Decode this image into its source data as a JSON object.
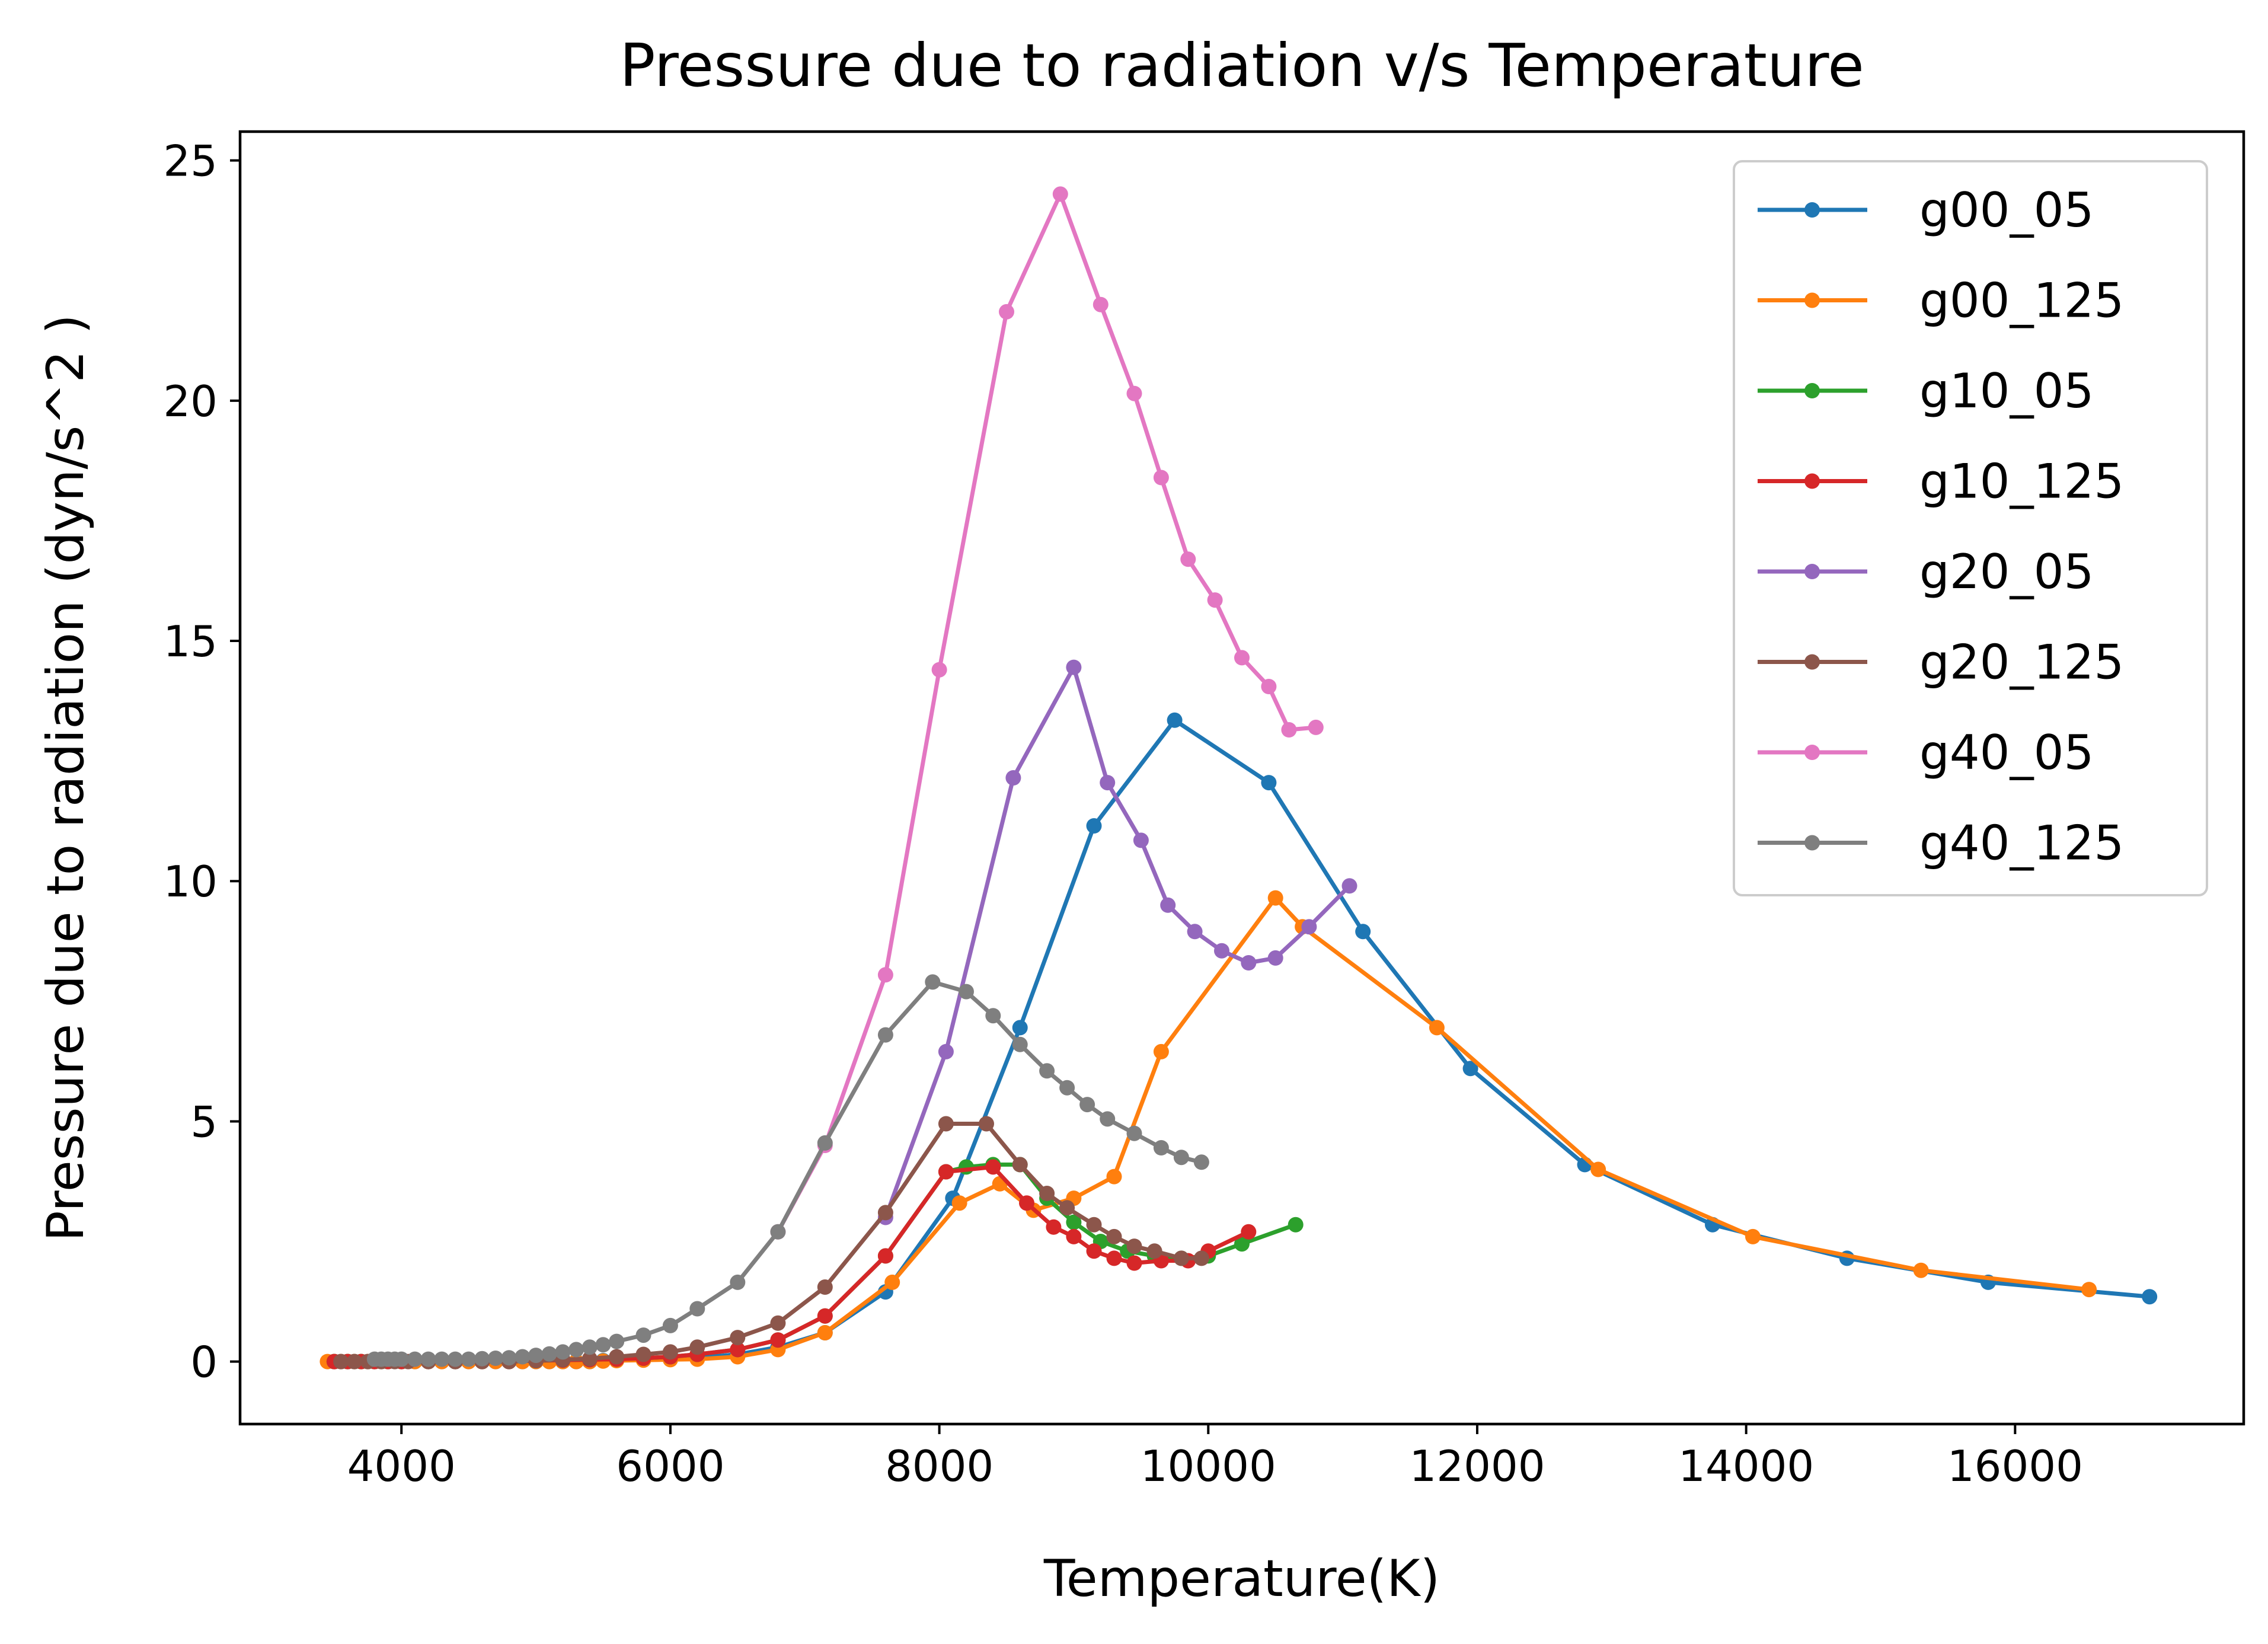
{
  "chart_data": {
    "type": "line",
    "title": "Pressure due to radiation v/s Temperature",
    "xlabel": "Temperature(K)",
    "ylabel": "Pressure due to radiation (dyn/s^2 )",
    "xlim": [
      2800,
      17700
    ],
    "ylim": [
      -1.3,
      25.6
    ],
    "xticks": [
      4000,
      6000,
      8000,
      10000,
      12000,
      14000,
      16000
    ],
    "yticks": [
      0,
      5,
      10,
      15,
      20,
      25
    ],
    "grid": false,
    "legend_position": "top-right",
    "series": [
      {
        "name": "g00_05",
        "color": "#1f77b4",
        "x": [
          3500,
          3550,
          3600,
          3650,
          3700,
          3750,
          3800,
          3850,
          3900,
          4000,
          4100,
          4200,
          4300,
          4400,
          4500,
          4600,
          4700,
          4800,
          4900,
          5000,
          5100,
          5200,
          5300,
          5400,
          5500,
          5600,
          5800,
          6000,
          6200,
          6500,
          6800,
          7150,
          7600,
          8100,
          8600,
          9150,
          9750,
          10450,
          11150,
          11950,
          12800,
          13750,
          14750,
          15800,
          17000
        ],
        "y": [
          0.0,
          0.0,
          0.0,
          0.0,
          0.0,
          0.0,
          0.0,
          0.0,
          0.0,
          0.0,
          0.0,
          0.0,
          0.0,
          0.0,
          0.0,
          0.0,
          0.0,
          0.0,
          0.0,
          0.0,
          0.0,
          0.0,
          0.0,
          0.0,
          0.02,
          0.03,
          0.04,
          0.05,
          0.08,
          0.15,
          0.3,
          0.6,
          1.45,
          3.4,
          6.95,
          11.15,
          13.35,
          12.05,
          8.95,
          6.1,
          4.1,
          2.85,
          2.15,
          1.65,
          1.35
        ]
      },
      {
        "name": "g00_125",
        "color": "#ff7f0e",
        "x": [
          3450,
          3500,
          3550,
          3600,
          3650,
          3700,
          3750,
          3800,
          3850,
          3900,
          4000,
          4100,
          4200,
          4300,
          4400,
          4500,
          4600,
          4700,
          4800,
          4900,
          5000,
          5100,
          5200,
          5300,
          5400,
          5500,
          5600,
          5800,
          6000,
          6200,
          6500,
          6800,
          7150,
          7650,
          8150,
          8450,
          8700,
          9000,
          9300,
          9650,
          10500,
          10700,
          11700,
          12900,
          14050,
          15300,
          16550
        ],
        "y": [
          0.0,
          0.0,
          0.0,
          0.0,
          0.0,
          0.0,
          0.0,
          0.0,
          0.0,
          0.0,
          0.0,
          0.0,
          0.0,
          0.0,
          0.0,
          0.0,
          0.0,
          0.0,
          0.0,
          0.0,
          0.0,
          0.0,
          0.0,
          0.0,
          0.0,
          0.01,
          0.02,
          0.03,
          0.04,
          0.05,
          0.1,
          0.25,
          0.6,
          1.65,
          3.3,
          3.7,
          3.15,
          3.4,
          3.85,
          6.45,
          9.65,
          9.05,
          6.95,
          4.0,
          2.6,
          1.9,
          1.5
        ]
      },
      {
        "name": "g10_05",
        "color": "#2ca02c",
        "x": [
          3500,
          3600,
          3700,
          3800,
          3900,
          4000,
          4200,
          4400,
          4600,
          4800,
          5000,
          5200,
          5400,
          5600,
          5800,
          6000,
          6200,
          6500,
          6800,
          7150,
          7600,
          8050,
          8200,
          8400,
          8600,
          8800,
          9000,
          9200,
          9400,
          9600,
          9800,
          10000,
          10250,
          10650
        ],
        "y": [
          0.0,
          0.0,
          0.0,
          0.0,
          0.0,
          0.0,
          0.0,
          0.0,
          0.0,
          0.0,
          0.02,
          0.03,
          0.04,
          0.05,
          0.07,
          0.1,
          0.15,
          0.25,
          0.45,
          0.95,
          2.2,
          3.95,
          4.05,
          4.1,
          4.1,
          3.4,
          2.9,
          2.5,
          2.3,
          2.2,
          2.15,
          2.2,
          2.45,
          2.85
        ]
      },
      {
        "name": "g10_125",
        "color": "#d62728",
        "x": [
          3500,
          3600,
          3700,
          3800,
          3900,
          4000,
          4200,
          4400,
          4600,
          4800,
          5000,
          5200,
          5400,
          5600,
          5800,
          6000,
          6200,
          6500,
          6800,
          7150,
          7600,
          8050,
          8400,
          8650,
          8850,
          9000,
          9150,
          9300,
          9450,
          9650,
          9850,
          10000,
          10300
        ],
        "y": [
          0.0,
          0.0,
          0.0,
          0.0,
          0.0,
          0.0,
          0.0,
          0.0,
          0.0,
          0.0,
          0.02,
          0.03,
          0.04,
          0.05,
          0.07,
          0.1,
          0.15,
          0.25,
          0.45,
          0.95,
          2.2,
          3.95,
          4.05,
          3.3,
          2.8,
          2.6,
          2.3,
          2.15,
          2.05,
          2.1,
          2.1,
          2.3,
          2.7
        ]
      },
      {
        "name": "g20_05",
        "color": "#9467bd",
        "x": [
          7600,
          8050,
          8550,
          9000,
          9250,
          9500,
          9700,
          9900,
          10100,
          10300,
          10500,
          10750,
          11050
        ],
        "y": [
          3.0,
          6.45,
          12.15,
          14.45,
          12.05,
          10.85,
          9.5,
          8.95,
          8.55,
          8.3,
          8.4,
          9.05,
          9.9
        ]
      },
      {
        "name": "g20_125",
        "color": "#8c564b",
        "x": [
          3550,
          3650,
          3750,
          3850,
          3950,
          4050,
          4200,
          4400,
          4600,
          4800,
          5000,
          5200,
          5400,
          5600,
          5800,
          6000,
          6200,
          6500,
          6800,
          7150,
          7600,
          8050,
          8350,
          8600,
          8800,
          8950,
          9150,
          9300,
          9450,
          9600,
          9800,
          9950
        ],
        "y": [
          0.0,
          0.0,
          0.0,
          0.0,
          0.0,
          0.0,
          0.0,
          0.0,
          0.0,
          0.0,
          0.02,
          0.04,
          0.06,
          0.1,
          0.15,
          0.2,
          0.3,
          0.5,
          0.8,
          1.55,
          3.1,
          4.95,
          4.95,
          4.1,
          3.5,
          3.2,
          2.85,
          2.6,
          2.4,
          2.3,
          2.15,
          2.15
        ]
      },
      {
        "name": "g40_05",
        "color": "#e377c2",
        "x": [
          6800,
          7150,
          7600,
          8000,
          8500,
          8900,
          9200,
          9450,
          9650,
          9850,
          10050,
          10250,
          10450,
          10600,
          10800
        ],
        "y": [
          2.7,
          4.5,
          8.05,
          14.4,
          21.85,
          24.3,
          22.0,
          20.15,
          18.4,
          16.7,
          15.85,
          14.65,
          14.05,
          13.15,
          13.2
        ]
      },
      {
        "name": "g40_125",
        "color": "#7f7f7f",
        "x": [
          3800,
          3850,
          3900,
          3950,
          4000,
          4100,
          4200,
          4300,
          4400,
          4500,
          4600,
          4700,
          4800,
          4900,
          5000,
          5100,
          5200,
          5300,
          5400,
          5500,
          5600,
          5800,
          6000,
          6200,
          6500,
          6800,
          7150,
          7600,
          7950,
          8200,
          8400,
          8600,
          8800,
          8950,
          9100,
          9250,
          9450,
          9650,
          9800,
          9950
        ],
        "y": [
          0.05,
          0.05,
          0.05,
          0.05,
          0.05,
          0.05,
          0.05,
          0.05,
          0.05,
          0.05,
          0.06,
          0.07,
          0.08,
          0.1,
          0.13,
          0.16,
          0.2,
          0.25,
          0.3,
          0.35,
          0.42,
          0.55,
          0.75,
          1.1,
          1.65,
          2.7,
          4.55,
          6.8,
          7.9,
          7.7,
          7.2,
          6.6,
          6.05,
          5.7,
          5.35,
          5.05,
          4.75,
          4.45,
          4.25,
          4.15
        ]
      }
    ]
  }
}
